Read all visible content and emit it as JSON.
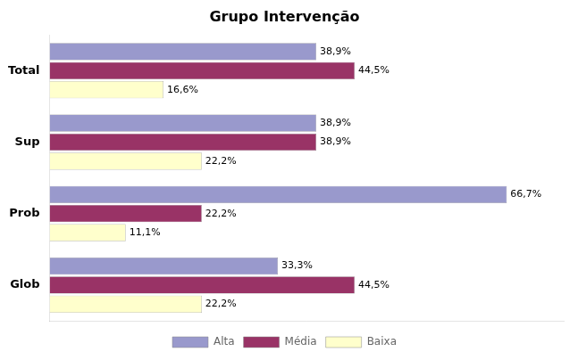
{
  "chart_data": {
    "type": "bar",
    "orientation": "horizontal",
    "title": "Grupo Intervenção",
    "categories": [
      "Glob",
      "Prob",
      "Sup",
      "Total"
    ],
    "series": [
      {
        "name": "Alta",
        "color": "#9999CC",
        "values": [
          33.3,
          66.7,
          38.9,
          38.9
        ],
        "value_labels": [
          "33,3%",
          "66,7%",
          "38,9%",
          "38,9%"
        ]
      },
      {
        "name": "Média",
        "color": "#993366",
        "values": [
          44.5,
          22.2,
          38.9,
          44.5
        ],
        "value_labels": [
          "44,5%",
          "22,2%",
          "38,9%",
          "44,5%"
        ]
      },
      {
        "name": "Baixa",
        "color": "#FFFFCC",
        "values": [
          22.2,
          11.1,
          22.2,
          16.6
        ],
        "value_labels": [
          "22,2%",
          "11,1%",
          "22,2%",
          "16,6%"
        ]
      }
    ],
    "xlim": [
      0,
      75
    ],
    "tick_labels": "y",
    "grid": false,
    "legend": "bottom",
    "data_labels": true
  }
}
